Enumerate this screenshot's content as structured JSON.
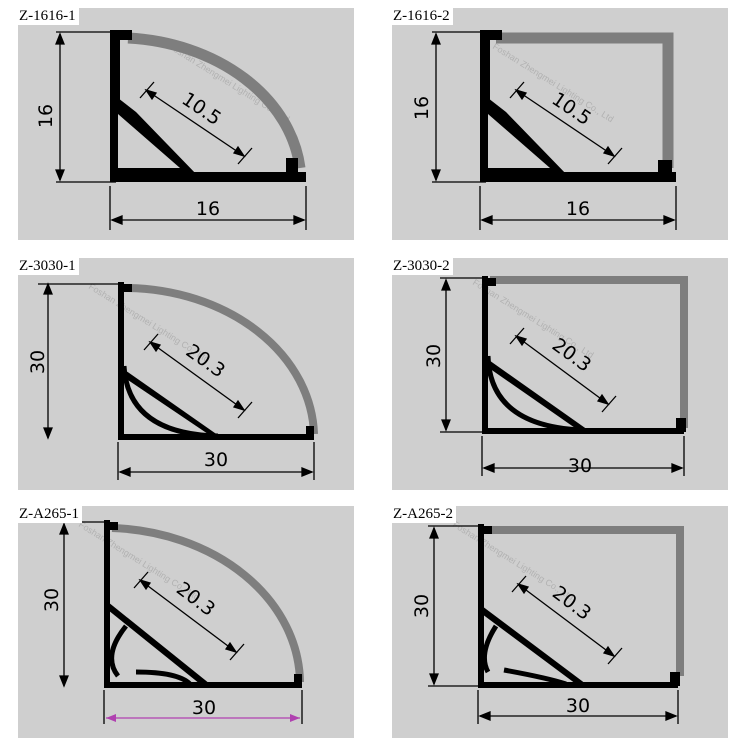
{
  "panels": [
    {
      "model": "Z-1616-1",
      "height_dim": "16",
      "width_dim": "16",
      "diag_dim": "10.5",
      "cover": "round"
    },
    {
      "model": "Z-1616-2",
      "height_dim": "16",
      "width_dim": "16",
      "diag_dim": "10.5",
      "cover": "square"
    },
    {
      "model": "Z-3030-1",
      "height_dim": "30",
      "width_dim": "30",
      "diag_dim": "20.3",
      "cover": "round"
    },
    {
      "model": "Z-3030-2",
      "height_dim": "30",
      "width_dim": "30",
      "diag_dim": "20.3",
      "cover": "square"
    },
    {
      "model": "Z-A265-1",
      "height_dim": "30",
      "width_dim": "30",
      "diag_dim": "20.3",
      "cover": "round"
    },
    {
      "model": "Z-A265-2",
      "height_dim": "30",
      "width_dim": "30",
      "diag_dim": "20.3",
      "cover": "square"
    }
  ],
  "watermark": "Foshan Zhengmei Lighting Co., Ltd",
  "colors": {
    "panel_bg": "#cfcfcf",
    "profile": "#000000",
    "cover": "#7e7e7e",
    "dimension_line": "#000000",
    "accent_width_line": "#b040b0"
  }
}
